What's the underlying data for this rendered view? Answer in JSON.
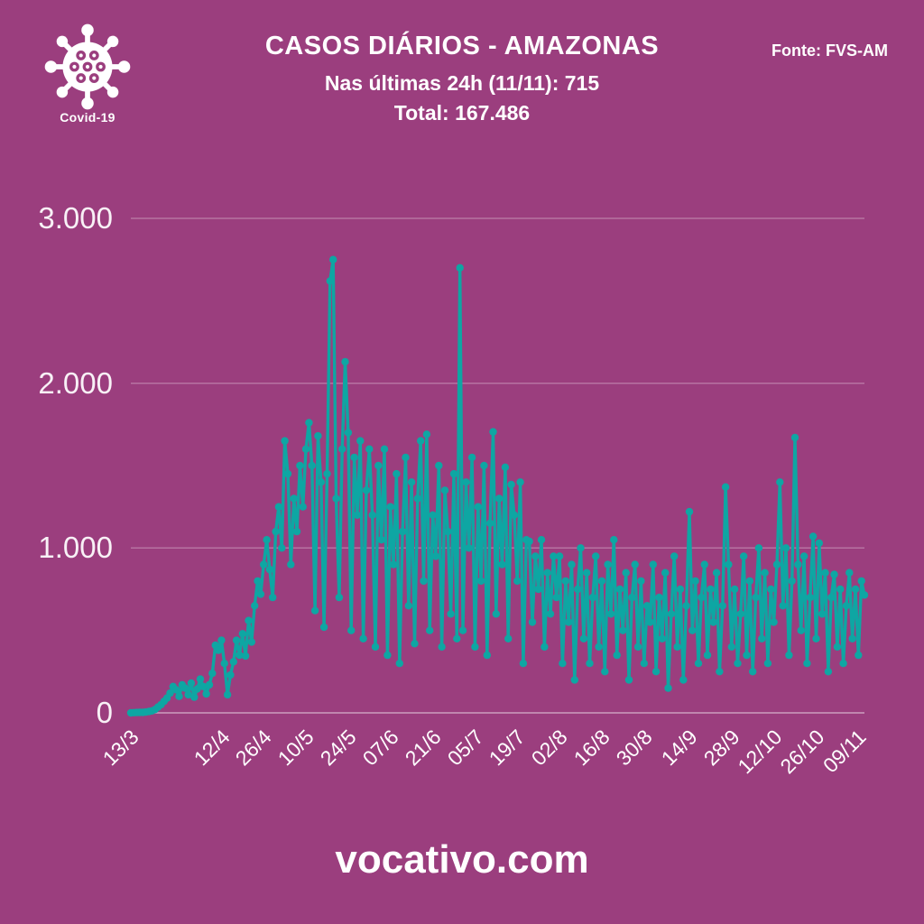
{
  "page": {
    "background_color": "#9B3E7E",
    "accent_color": "#0EA6A3"
  },
  "header": {
    "logo_label": "Covid-19",
    "title": "CASOS DIÁRIOS - AMAZONAS",
    "subtitle": "Nas últimas 24h (11/11): 715",
    "total": "Total: 167.486",
    "source": "Fonte: FVS-AM"
  },
  "footer": {
    "site": "vocativo.com"
  },
  "chart_data": {
    "type": "line",
    "title": "CASOS DIÁRIOS - AMAZONAS",
    "series_name": "casos diários",
    "line_color": "#0EA6A3",
    "marker": "circle",
    "grid": true,
    "legend": "none",
    "ylim": [
      0,
      3000
    ],
    "ytick_values": [
      0,
      1000,
      2000,
      3000
    ],
    "ytick_labels": [
      "0",
      "1.000",
      "2.000",
      "3.000"
    ],
    "xtick_labels": [
      "13/3",
      "12/4",
      "26/4",
      "10/5",
      "24/5",
      "07/6",
      "21/6",
      "05/7",
      "19/7",
      "02/8",
      "16/8",
      "30/8",
      "14/9",
      "28/9",
      "12/10",
      "26/10",
      "09/11"
    ],
    "xtick_day_indices": [
      0,
      30,
      44,
      58,
      72,
      86,
      100,
      114,
      128,
      142,
      156,
      170,
      185,
      199,
      213,
      227,
      241
    ],
    "x_start_date": "13/3",
    "x_end_date": "11/11",
    "last_value": 715,
    "values": [
      0,
      1,
      2,
      3,
      3,
      5,
      8,
      12,
      20,
      35,
      50,
      70,
      90,
      120,
      160,
      140,
      100,
      170,
      150,
      110,
      180,
      95,
      145,
      205,
      160,
      115,
      170,
      240,
      410,
      380,
      440,
      300,
      110,
      230,
      310,
      440,
      350,
      480,
      345,
      560,
      430,
      650,
      800,
      720,
      900,
      1050,
      870,
      700,
      1100,
      1250,
      1000,
      1650,
      1450,
      900,
      1300,
      1100,
      1500,
      1250,
      1600,
      1760,
      1500,
      620,
      1680,
      1400,
      520,
      1450,
      2620,
      2750,
      1300,
      700,
      1600,
      2130,
      1700,
      500,
      1550,
      1200,
      1650,
      450,
      1350,
      1600,
      1200,
      400,
      1500,
      1050,
      1600,
      350,
      1250,
      900,
      1450,
      300,
      1100,
      1550,
      650,
      1400,
      420,
      1300,
      1650,
      800,
      1690,
      500,
      1200,
      950,
      1500,
      400,
      1350,
      1100,
      600,
      1450,
      450,
      2700,
      500,
      1400,
      1000,
      1550,
      400,
      1250,
      800,
      1500,
      350,
      1150,
      1705,
      600,
      1300,
      900,
      1490,
      450,
      1385,
      1200,
      800,
      1400,
      300,
      1050,
      1040,
      550,
      950,
      750,
      1050,
      400,
      850,
      600,
      950,
      700,
      950,
      300,
      800,
      550,
      900,
      200,
      750,
      1000,
      450,
      850,
      300,
      700,
      950,
      400,
      800,
      250,
      900,
      600,
      1050,
      350,
      750,
      500,
      850,
      200,
      700,
      900,
      400,
      800,
      300,
      650,
      550,
      900,
      250,
      700,
      450,
      850,
      150,
      600,
      950,
      400,
      750,
      200,
      650,
      1220,
      500,
      800,
      300,
      700,
      900,
      350,
      750,
      550,
      850,
      250,
      650,
      1370,
      900,
      400,
      750,
      300,
      600,
      950,
      350,
      800,
      250,
      700,
      1000,
      450,
      850,
      300,
      750,
      550,
      900,
      1400,
      650,
      1000,
      350,
      800,
      1670,
      900,
      500,
      950,
      300,
      700,
      1070,
      450,
      1030,
      600,
      850,
      250,
      700,
      840,
      400,
      750,
      300,
      650,
      850,
      450,
      750,
      350,
      800,
      715
    ]
  }
}
